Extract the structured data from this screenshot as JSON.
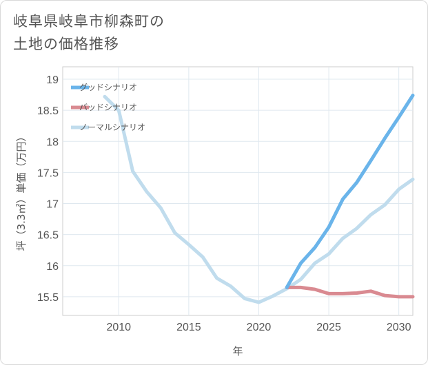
{
  "title": {
    "line1": "岐阜県岐阜市柳森町の",
    "line2": "土地の価格推移"
  },
  "chart_data": {
    "type": "line",
    "title": "岐阜県岐阜市柳森町の土地の価格推移",
    "xlabel": "年",
    "ylabel": "坪（3.3㎡）単価（万円）",
    "xlim": [
      2006,
      2031
    ],
    "ylim": [
      15.2,
      19.2
    ],
    "x_ticks": [
      2010,
      2015,
      2020,
      2025,
      2030
    ],
    "y_ticks": [
      15.5,
      16,
      16.5,
      17,
      17.5,
      18,
      18.5,
      19
    ],
    "grid": true,
    "legend_position": "top-left",
    "series": [
      {
        "name": "ノーマルシナリオ",
        "color": "#c0dced",
        "x": [
          2009,
          2010,
          2011,
          2012,
          2013,
          2014,
          2015,
          2016,
          2017,
          2018,
          2019,
          2020,
          2021,
          2022,
          2023,
          2024,
          2025,
          2026,
          2027,
          2028,
          2029,
          2030,
          2031
        ],
        "y": [
          18.72,
          18.5,
          17.52,
          17.19,
          16.93,
          16.53,
          16.34,
          16.14,
          15.8,
          15.67,
          15.47,
          15.41,
          15.51,
          15.63,
          15.78,
          16.04,
          16.19,
          16.44,
          16.6,
          16.82,
          16.98,
          17.23,
          17.39
        ]
      },
      {
        "name": "バッドシナリオ",
        "color": "#d98a91",
        "x": [
          2022,
          2023,
          2024,
          2025,
          2026,
          2027,
          2028,
          2029,
          2030,
          2031
        ],
        "y": [
          15.65,
          15.65,
          15.62,
          15.55,
          15.55,
          15.56,
          15.59,
          15.52,
          15.5,
          15.5
        ]
      },
      {
        "name": "グッドシナリオ",
        "color": "#6ab4ea",
        "x": [
          2022,
          2023,
          2024,
          2025,
          2026,
          2027,
          2028,
          2029,
          2030,
          2031
        ],
        "y": [
          15.65,
          16.04,
          16.29,
          16.62,
          17.07,
          17.34,
          17.69,
          18.05,
          18.39,
          18.74
        ]
      }
    ],
    "legend": [
      "グッドシナリオ",
      "バッドシナリオ",
      "ノーマルシナリオ"
    ]
  }
}
